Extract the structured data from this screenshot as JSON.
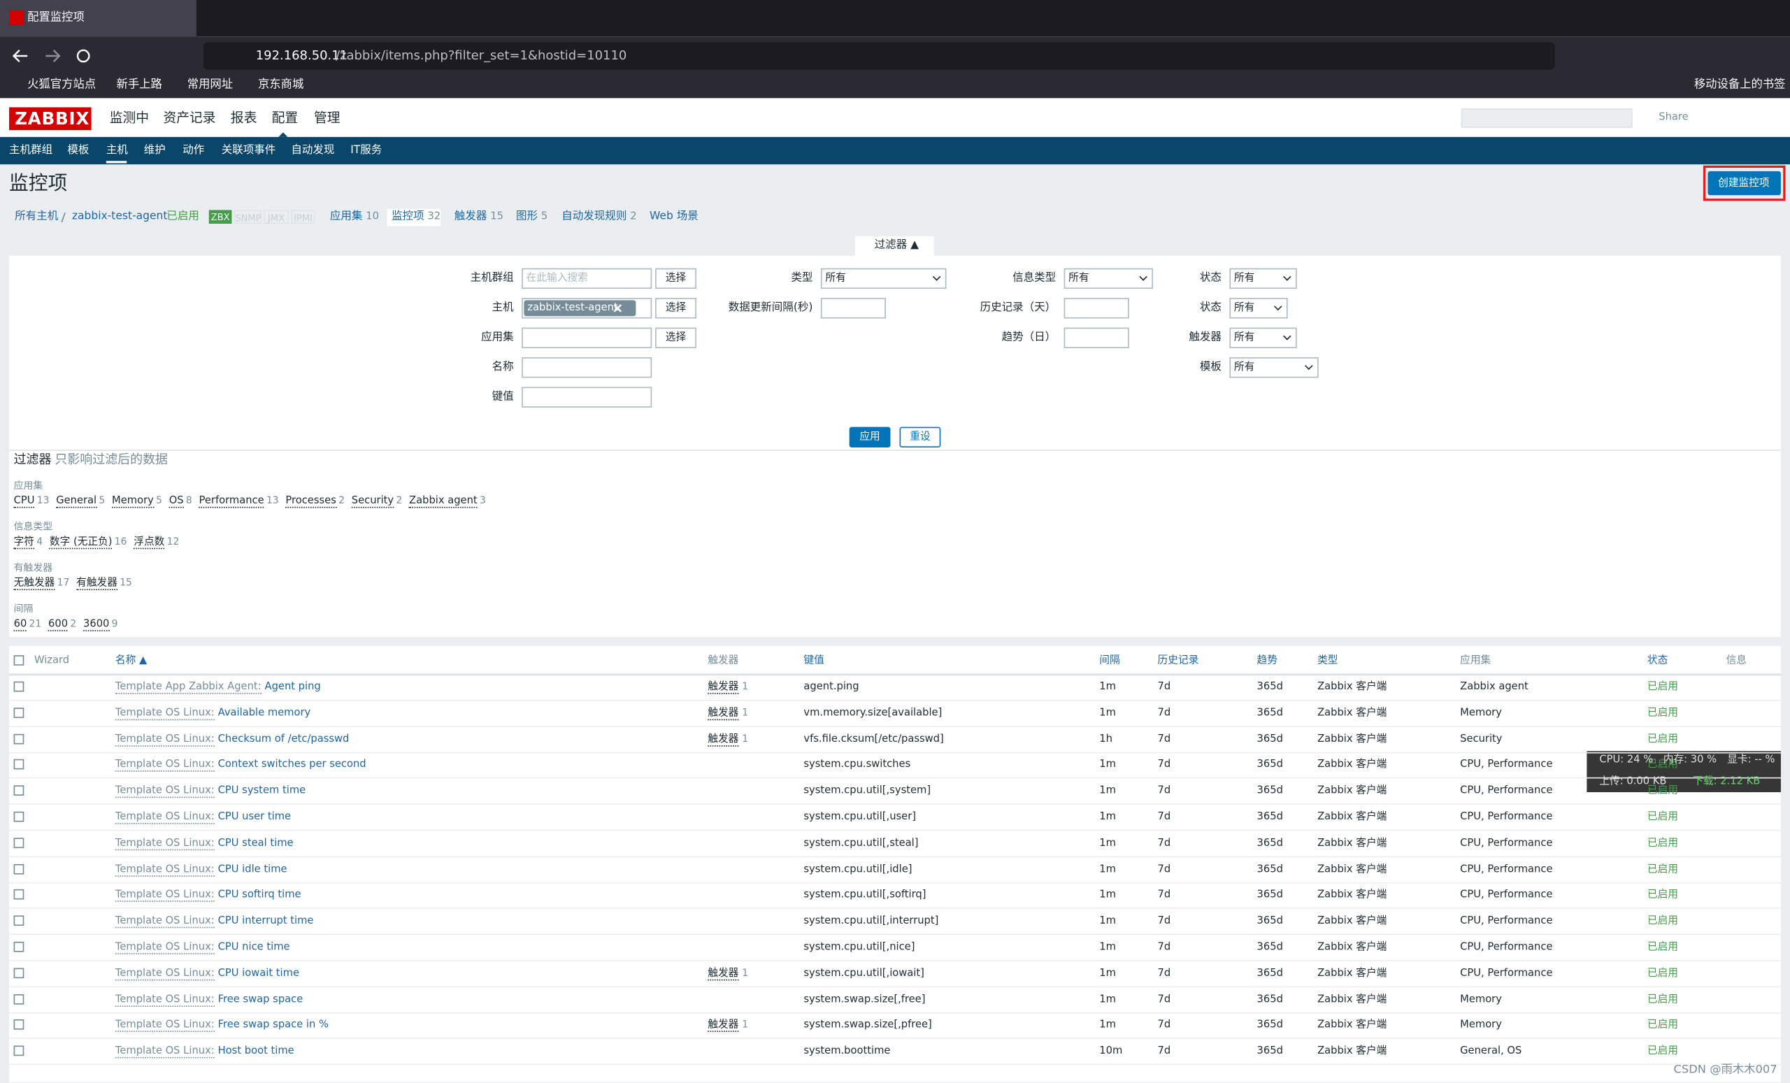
{
  "browser": {
    "tab_title": "配置监控项",
    "url_host": "192.168.50.11",
    "url_path": "/zabbix/items.php?filter_set=1&hostid=10110",
    "bookmarks": [
      "火狐官方站点",
      "新手上路",
      "常用网址",
      "京东商城"
    ],
    "mobile_bookmarks": "移动设备上的书签"
  },
  "header": {
    "logo": "ZABBIX",
    "menu": [
      "监测中",
      "资产记录",
      "报表",
      "配置",
      "管理"
    ],
    "share": "Share",
    "submenu": [
      "主机群组",
      "模板",
      "主机",
      "维护",
      "动作",
      "关联项事件",
      "自动发现",
      "IT服务"
    ]
  },
  "page": {
    "title": "监控项",
    "create_button": "创建监控项"
  },
  "breadcrumb": {
    "all_hosts": "所有主机",
    "host": "zabbix-test-agent",
    "status": "已启用",
    "tags": [
      "ZBX",
      "SNMP",
      "JMX",
      "IPMI"
    ],
    "tabs": [
      {
        "label": "应用集",
        "count": 10
      },
      {
        "label": "监控项",
        "count": 32
      },
      {
        "label": "触发器",
        "count": 15
      },
      {
        "label": "图形",
        "count": 5
      },
      {
        "label": "自动发现规则",
        "count": 2
      },
      {
        "label": "Web 场景"
      }
    ]
  },
  "filter": {
    "toggle": "过滤器 ▲",
    "fields": [
      {
        "label": "主机群组",
        "placeholder": "在此输入搜索",
        "button": "选择"
      },
      {
        "label": "主机",
        "chip": "zabbix-test-agent",
        "button": "选择"
      },
      {
        "label": "应用集",
        "button": "选择"
      },
      {
        "label": "名称"
      },
      {
        "label": "键值"
      },
      {
        "label": "类型",
        "value": "所有"
      },
      {
        "label": "数据更新间隔(秒)"
      },
      {
        "label": "信息类型",
        "value": "所有"
      },
      {
        "label": "历史记录（天）"
      },
      {
        "label": "趋势（日）"
      },
      {
        "label": "状态",
        "value": "所有"
      },
      {
        "label": "状态",
        "value": "所有"
      },
      {
        "label": "触发器",
        "value": "所有"
      },
      {
        "label": "模板",
        "value": "所有"
      }
    ],
    "apply": "应用",
    "reset": "重设"
  },
  "subfilter": {
    "title": "过滤器",
    "note": "只影响过滤后的数据",
    "groups": [
      {
        "title": "应用集",
        "items": [
          {
            "label": "CPU",
            "count": 13
          },
          {
            "label": "General",
            "count": 5
          },
          {
            "label": "Memory",
            "count": 5
          },
          {
            "label": "OS",
            "count": 8
          },
          {
            "label": "Performance",
            "count": 13
          },
          {
            "label": "Processes",
            "count": 2
          },
          {
            "label": "Security",
            "count": 2
          },
          {
            "label": "Zabbix agent",
            "count": 3
          }
        ]
      },
      {
        "title": "信息类型",
        "items": [
          {
            "label": "字符",
            "count": 4
          },
          {
            "label": "数字 (无正负)",
            "count": 16
          },
          {
            "label": "浮点数",
            "count": 12
          }
        ]
      },
      {
        "title": "有触发器",
        "items": [
          {
            "label": "无触发器",
            "count": 17
          },
          {
            "label": "有触发器",
            "count": 15
          }
        ]
      },
      {
        "title": "间隔",
        "items": [
          {
            "label": "60",
            "count": 21
          },
          {
            "label": "600",
            "count": 2
          },
          {
            "label": "3600",
            "count": 9
          }
        ]
      }
    ]
  },
  "table": {
    "headers": [
      "Wizard",
      "名称 ▲",
      "触发器",
      "键值",
      "间隔",
      "历史记录",
      "趋势",
      "类型",
      "应用集",
      "状态",
      "信息"
    ],
    "trigger_label": "触发器",
    "rows": [
      {
        "template": "Template App Zabbix Agent:",
        "name": "Agent ping",
        "triggers": 1,
        "key": "agent.ping",
        "interval": "1m",
        "history": "7d",
        "trends": "365d",
        "type": "Zabbix 客户端",
        "applications": "Zabbix agent",
        "status": "已启用"
      },
      {
        "template": "Template OS Linux:",
        "name": "Available memory",
        "triggers": 1,
        "key": "vm.memory.size[available]",
        "interval": "1m",
        "history": "7d",
        "trends": "365d",
        "type": "Zabbix 客户端",
        "applications": "Memory",
        "status": "已启用"
      },
      {
        "template": "Template OS Linux:",
        "name": "Checksum of /etc/passwd",
        "triggers": 1,
        "key": "vfs.file.cksum[/etc/passwd]",
        "interval": "1h",
        "history": "7d",
        "trends": "365d",
        "type": "Zabbix 客户端",
        "applications": "Security",
        "status": "已启用"
      },
      {
        "template": "Template OS Linux:",
        "name": "Context switches per second",
        "key": "system.cpu.switches",
        "interval": "1m",
        "history": "7d",
        "trends": "365d",
        "type": "Zabbix 客户端",
        "applications": "CPU, Performance",
        "status": "已启用"
      },
      {
        "template": "Template OS Linux:",
        "name": "CPU system time",
        "key": "system.cpu.util[,system]",
        "interval": "1m",
        "history": "7d",
        "trends": "365d",
        "type": "Zabbix 客户端",
        "applications": "CPU, Performance",
        "status": "已启用"
      },
      {
        "template": "Template OS Linux:",
        "name": "CPU user time",
        "key": "system.cpu.util[,user]",
        "interval": "1m",
        "history": "7d",
        "trends": "365d",
        "type": "Zabbix 客户端",
        "applications": "CPU, Performance",
        "status": "已启用"
      },
      {
        "template": "Template OS Linux:",
        "name": "CPU steal time",
        "key": "system.cpu.util[,steal]",
        "interval": "1m",
        "history": "7d",
        "trends": "365d",
        "type": "Zabbix 客户端",
        "applications": "CPU, Performance",
        "status": "已启用"
      },
      {
        "template": "Template OS Linux:",
        "name": "CPU idle time",
        "key": "system.cpu.util[,idle]",
        "interval": "1m",
        "history": "7d",
        "trends": "365d",
        "type": "Zabbix 客户端",
        "applications": "CPU, Performance",
        "status": "已启用"
      },
      {
        "template": "Template OS Linux:",
        "name": "CPU softirq time",
        "key": "system.cpu.util[,softirq]",
        "interval": "1m",
        "history": "7d",
        "trends": "365d",
        "type": "Zabbix 客户端",
        "applications": "CPU, Performance",
        "status": "已启用"
      },
      {
        "template": "Template OS Linux:",
        "name": "CPU interrupt time",
        "key": "system.cpu.util[,interrupt]",
        "interval": "1m",
        "history": "7d",
        "trends": "365d",
        "type": "Zabbix 客户端",
        "applications": "CPU, Performance",
        "status": "已启用"
      },
      {
        "template": "Template OS Linux:",
        "name": "CPU nice time",
        "key": "system.cpu.util[,nice]",
        "interval": "1m",
        "history": "7d",
        "trends": "365d",
        "type": "Zabbix 客户端",
        "applications": "CPU, Performance",
        "status": "已启用"
      },
      {
        "template": "Template OS Linux:",
        "name": "CPU iowait time",
        "triggers": 1,
        "key": "system.cpu.util[,iowait]",
        "interval": "1m",
        "history": "7d",
        "trends": "365d",
        "type": "Zabbix 客户端",
        "applications": "CPU, Performance",
        "status": "已启用"
      },
      {
        "template": "Template OS Linux:",
        "name": "Free swap space",
        "key": "system.swap.size[,free]",
        "interval": "1m",
        "history": "7d",
        "trends": "365d",
        "type": "Zabbix 客户端",
        "applications": "Memory",
        "status": "已启用"
      },
      {
        "template": "Template OS Linux:",
        "name": "Free swap space in %",
        "triggers": 1,
        "key": "system.swap.size[,pfree]",
        "interval": "1m",
        "history": "7d",
        "trends": "365d",
        "type": "Zabbix 客户端",
        "applications": "Memory",
        "status": "已启用"
      },
      {
        "template": "Template OS Linux:",
        "name": "Host boot time",
        "key": "system.boottime",
        "interval": "10m",
        "history": "7d",
        "trends": "365d",
        "type": "Zabbix 客户端",
        "applications": "General, OS",
        "status": "已启用"
      }
    ]
  },
  "overlay": {
    "cpu": "CPU: 24 %",
    "memory": "内存: 30 %",
    "gpu": "显卡: -- %",
    "upload": "上传: 0.00 KB",
    "download": "下载: 2.12 KB"
  },
  "watermark": "CSDN @雨木木007"
}
